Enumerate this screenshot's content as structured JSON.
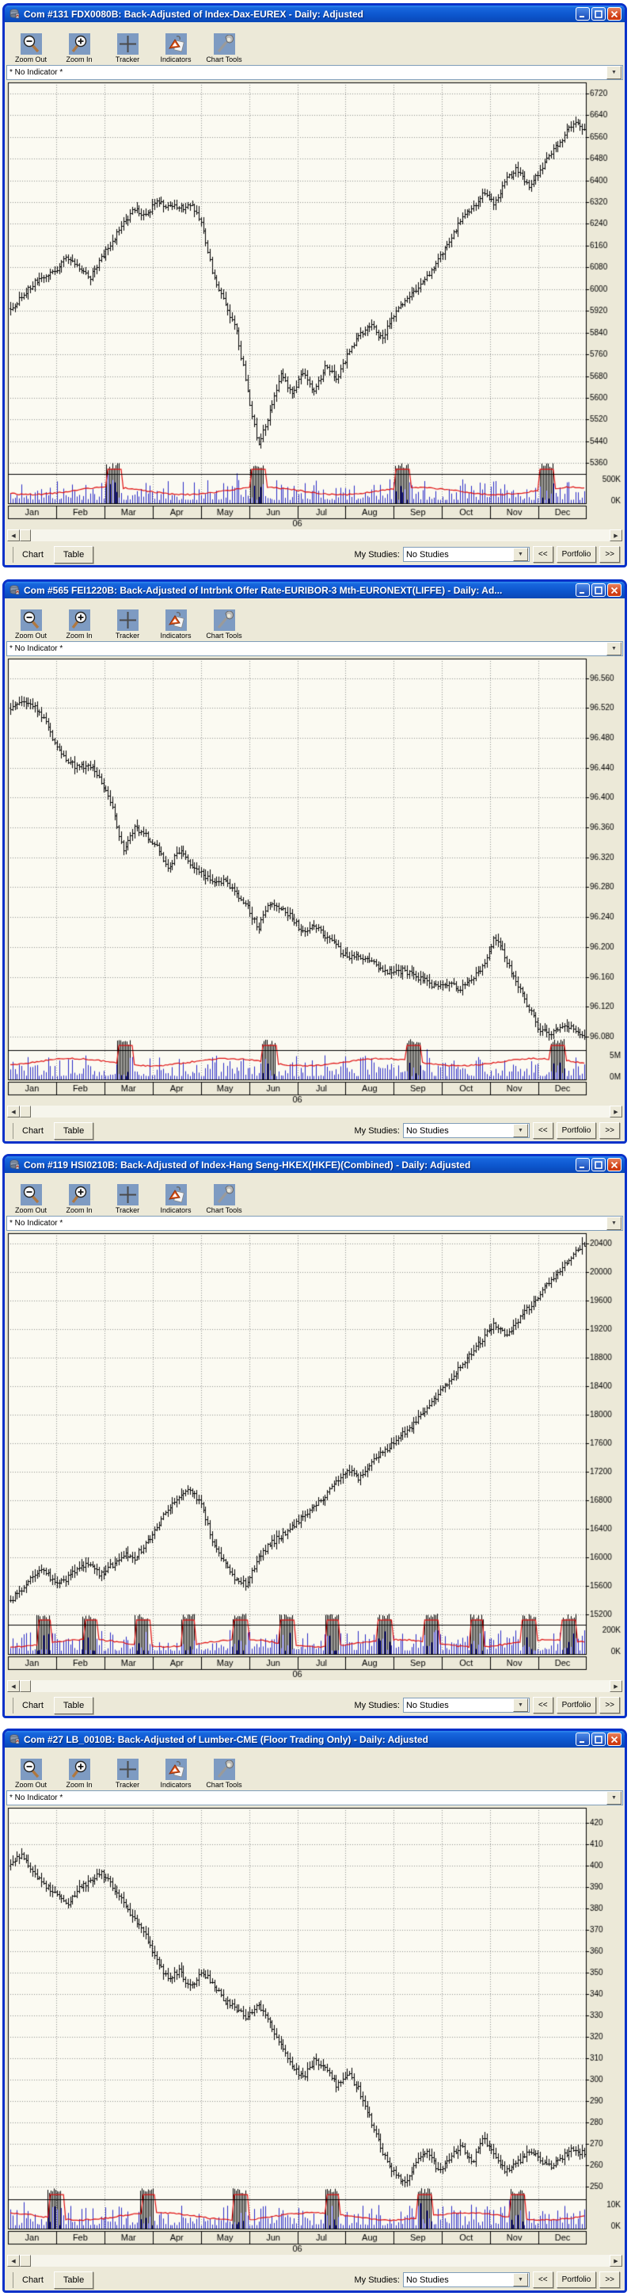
{
  "shared": {
    "toolbar": [
      {
        "label": "Zoom Out",
        "icon": "zoom-out-icon"
      },
      {
        "label": "Zoom In",
        "icon": "zoom-in-icon"
      },
      {
        "label": "Tracker",
        "icon": "tracker-crosshair-icon"
      },
      {
        "label": "Indicators",
        "icon": "indicators-icon"
      },
      {
        "label": "Chart Tools",
        "icon": "chart-tools-wrench-icon"
      }
    ],
    "indicator_value": "* No Indicator *",
    "tabs": {
      "chart": "Chart",
      "table": "Table"
    },
    "my_studies_label": "My Studies:",
    "my_studies_value": "No Studies",
    "portfolio_prev": "<<",
    "portfolio": "Portfolio",
    "portfolio_next": ">>",
    "colors": {
      "bar": "#000000",
      "volume": "#2A2AC8",
      "overlay": "#E01010",
      "grid": "#909090",
      "chart_bg": "#FBFAF2",
      "face": "#ECE9D8"
    }
  },
  "windows": [
    {
      "title": "Com #131 FDX0080B: Back-Adjusted of Index-Dax-EUREX - Daily: Adjusted",
      "chart_data": {
        "type": "ohlc-bar",
        "months": [
          "Jan",
          "Feb",
          "Mar",
          "Apr",
          "May",
          "Jun",
          "Jul",
          "Aug",
          "Sep",
          "Oct",
          "Nov",
          "Dec"
        ],
        "year": "06",
        "yticks": [
          "6720",
          "6640",
          "6560",
          "6480",
          "6400",
          "6320",
          "6240",
          "6160",
          "6080",
          "6000",
          "5920",
          "5840",
          "5760",
          "5680",
          "5600",
          "5520",
          "5440",
          "5360"
        ],
        "ylim": [
          5320,
          6760
        ],
        "volume_labels": [
          "500K",
          "0K"
        ],
        "weekly_closes": [
          5930,
          5975,
          6020,
          6045,
          6070,
          6120,
          6090,
          6040,
          6110,
          6175,
          6240,
          6295,
          6275,
          6320,
          6310,
          6295,
          6320,
          6240,
          6050,
          5950,
          5860,
          5640,
          5420,
          5540,
          5690,
          5610,
          5700,
          5625,
          5720,
          5675,
          5760,
          5830,
          5870,
          5815,
          5900,
          5955,
          6000,
          6040,
          6110,
          6175,
          6255,
          6300,
          6355,
          6315,
          6400,
          6445,
          6380,
          6435,
          6495,
          6555,
          6615,
          6590
        ],
        "rollovers": [
          0.18,
          0.43,
          0.68,
          0.93
        ],
        "overlay_level": 0.5,
        "seed": 7
      }
    },
    {
      "title": "Com #565 FEI1220B: Back-Adjusted of Intrbnk Offer Rate-EURIBOR-3 Mth-EURONEXT(LIFFE) - Daily: Ad...",
      "chart_data": {
        "type": "ohlc-bar",
        "months": [
          "Jan",
          "Feb",
          "Mar",
          "Apr",
          "May",
          "Jun",
          "Jul",
          "Aug",
          "Sep",
          "Oct",
          "Nov",
          "Dec"
        ],
        "year": "06",
        "yticks": [
          "96.560",
          "96.520",
          "96.480",
          "96.440",
          "96.400",
          "96.360",
          "96.320",
          "96.280",
          "96.240",
          "96.200",
          "96.160",
          "96.120",
          "96.080"
        ],
        "ylim": [
          96.062,
          96.586
        ],
        "volume_labels": [
          "5M",
          "0M"
        ],
        "weekly_closes": [
          96.52,
          96.53,
          96.525,
          96.505,
          96.47,
          96.45,
          96.44,
          96.445,
          96.425,
          96.39,
          96.33,
          96.36,
          96.35,
          96.335,
          96.305,
          96.33,
          96.31,
          96.3,
          96.285,
          96.29,
          96.27,
          96.255,
          96.225,
          96.26,
          96.25,
          96.24,
          96.22,
          96.23,
          96.215,
          96.2,
          96.185,
          96.19,
          96.18,
          96.17,
          96.165,
          96.17,
          96.16,
          96.155,
          96.145,
          96.15,
          96.145,
          96.155,
          96.175,
          96.215,
          96.185,
          96.15,
          96.12,
          96.09,
          96.085,
          96.095,
          96.09,
          96.08
        ],
        "rollovers": [
          0.2,
          0.45,
          0.7,
          0.95
        ],
        "overlay_level": 0.32,
        "seed": 21
      }
    },
    {
      "title": "Com #119 HSI0210B: Back-Adjusted of Index-Hang Seng-HKEX(HKFE)(Combined) - Daily: Adjusted",
      "chart_data": {
        "type": "ohlc-bar",
        "months": [
          "Jan",
          "Feb",
          "Mar",
          "Apr",
          "May",
          "Jun",
          "Jul",
          "Aug",
          "Sep",
          "Oct",
          "Nov",
          "Dec"
        ],
        "year": "06",
        "yticks": [
          "20400",
          "20000",
          "19600",
          "19200",
          "18800",
          "18400",
          "18000",
          "17600",
          "17200",
          "16800",
          "16400",
          "16000",
          "15600",
          "15200"
        ],
        "ylim": [
          15050,
          20550
        ],
        "volume_labels": [
          "200K",
          "0K"
        ],
        "weekly_closes": [
          15400,
          15560,
          15720,
          15840,
          15620,
          15700,
          15860,
          15900,
          15760,
          15890,
          16040,
          16000,
          16180,
          16420,
          16680,
          16880,
          16980,
          16700,
          16220,
          15900,
          15700,
          15620,
          15980,
          16180,
          16300,
          16440,
          16580,
          16700,
          16880,
          17080,
          17240,
          17100,
          17300,
          17480,
          17600,
          17760,
          17900,
          18080,
          18280,
          18480,
          18680,
          18880,
          19080,
          19280,
          19120,
          19300,
          19500,
          19700,
          19880,
          20080,
          20280,
          20400
        ],
        "rollovers": [
          0.06,
          0.14,
          0.23,
          0.31,
          0.4,
          0.48,
          0.56,
          0.65,
          0.73,
          0.81,
          0.9,
          0.97
        ],
        "overlay_level": 0.55,
        "seed": 33
      }
    },
    {
      "title": "Com #27 LB_0010B: Back-Adjusted of Lumber-CME (Floor Trading Only) - Daily: Adjusted",
      "chart_data": {
        "type": "ohlc-bar",
        "months": [
          "Jan",
          "Feb",
          "Mar",
          "Apr",
          "May",
          "Jun",
          "Jul",
          "Aug",
          "Sep",
          "Oct",
          "Nov",
          "Dec"
        ],
        "year": "06",
        "yticks": [
          "420",
          "410",
          "400",
          "390",
          "380",
          "370",
          "360",
          "350",
          "340",
          "330",
          "320",
          "310",
          "300",
          "290",
          "280",
          "270",
          "260",
          "250"
        ],
        "ylim": [
          244,
          427
        ],
        "volume_labels": [
          "10K",
          "0K"
        ],
        "weekly_closes": [
          400,
          406,
          397,
          391,
          387,
          381,
          389,
          393,
          397,
          391,
          383,
          375,
          367,
          355,
          347,
          351,
          343,
          351,
          345,
          337,
          333,
          329,
          335,
          327,
          317,
          307,
          301,
          309,
          305,
          297,
          303,
          295,
          281,
          267,
          257,
          251,
          261,
          267,
          257,
          263,
          269,
          261,
          273,
          265,
          257,
          261,
          267,
          263,
          259,
          264,
          268,
          265
        ],
        "rollovers": [
          0.08,
          0.24,
          0.4,
          0.56,
          0.72,
          0.88
        ],
        "overlay_level": 0.5,
        "seed": 49
      }
    }
  ]
}
